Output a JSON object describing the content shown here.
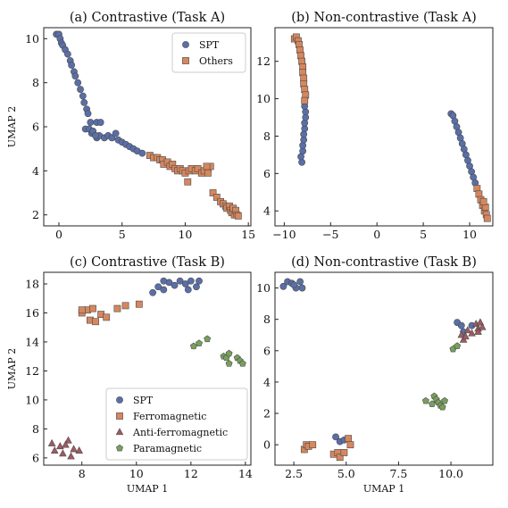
{
  "colors": {
    "SPT": "#5a6fa8",
    "Others": "#d6875e",
    "Ferromagnetic": "#d6875e",
    "Anti-ferromagnetic": "#a05a62",
    "Paramagnetic": "#78a05c"
  },
  "chart_data": [
    {
      "type": "scatter",
      "title": "(a) Contrastive (Task A)",
      "xlabel": "",
      "ylabel": "UMAP 2",
      "xlim": [
        -1.2,
        15.2
      ],
      "ylim": [
        1.5,
        10.5
      ],
      "xticks": [
        0,
        5,
        10,
        15
      ],
      "yticks": [
        2,
        4,
        6,
        8,
        10
      ],
      "legend": {
        "placement": "top-right",
        "entries": [
          "SPT",
          "Others"
        ]
      },
      "series": [
        {
          "name": "SPT",
          "marker": "circle",
          "points": [
            [
              -0.2,
              10.2
            ],
            [
              0.0,
              10.2
            ],
            [
              0.1,
              10.0
            ],
            [
              0.2,
              9.8
            ],
            [
              0.3,
              9.7
            ],
            [
              0.5,
              9.5
            ],
            [
              0.7,
              9.3
            ],
            [
              0.9,
              9.0
            ],
            [
              1.0,
              8.8
            ],
            [
              1.2,
              8.5
            ],
            [
              1.3,
              8.3
            ],
            [
              1.5,
              8.0
            ],
            [
              1.7,
              7.7
            ],
            [
              1.9,
              7.4
            ],
            [
              2.0,
              7.1
            ],
            [
              2.2,
              6.8
            ],
            [
              2.3,
              6.6
            ],
            [
              2.5,
              6.2
            ],
            [
              2.1,
              5.9
            ],
            [
              2.4,
              5.9
            ],
            [
              2.6,
              5.7
            ],
            [
              3.0,
              5.5
            ],
            [
              3.2,
              5.6
            ],
            [
              3.6,
              5.5
            ],
            [
              3.9,
              5.6
            ],
            [
              4.2,
              5.5
            ],
            [
              4.5,
              5.7
            ],
            [
              4.7,
              5.4
            ],
            [
              5.0,
              5.3
            ],
            [
              5.3,
              5.2
            ],
            [
              5.6,
              5.1
            ],
            [
              5.9,
              5.0
            ],
            [
              6.2,
              4.9
            ],
            [
              6.6,
              4.8
            ],
            [
              3.0,
              6.2
            ],
            [
              3.3,
              6.2
            ],
            [
              2.7,
              5.8
            ],
            [
              2.9,
              5.6
            ]
          ]
        },
        {
          "name": "Others",
          "marker": "square",
          "points": [
            [
              7.2,
              4.7
            ],
            [
              7.5,
              4.6
            ],
            [
              7.8,
              4.6
            ],
            [
              8.0,
              4.5
            ],
            [
              8.2,
              4.5
            ],
            [
              8.3,
              4.3
            ],
            [
              8.6,
              4.4
            ],
            [
              8.8,
              4.2
            ],
            [
              9.0,
              4.3
            ],
            [
              9.2,
              4.1
            ],
            [
              9.4,
              4.0
            ],
            [
              9.6,
              4.1
            ],
            [
              9.8,
              4.0
            ],
            [
              10.0,
              3.9
            ],
            [
              10.3,
              4.0
            ],
            [
              10.5,
              4.1
            ],
            [
              10.8,
              4.0
            ],
            [
              11.0,
              4.1
            ],
            [
              11.3,
              3.9
            ],
            [
              11.5,
              4.0
            ],
            [
              11.8,
              4.1
            ],
            [
              12.0,
              4.2
            ],
            [
              11.8,
              3.9
            ],
            [
              10.2,
              3.5
            ],
            [
              12.2,
              3.0
            ],
            [
              12.5,
              2.8
            ],
            [
              12.8,
              2.6
            ],
            [
              13.0,
              2.5
            ],
            [
              13.2,
              2.4
            ],
            [
              13.3,
              2.3
            ],
            [
              13.5,
              2.4
            ],
            [
              13.6,
              2.2
            ],
            [
              13.7,
              2.1
            ],
            [
              13.8,
              2.3
            ],
            [
              13.9,
              2.0
            ],
            [
              14.0,
              2.2
            ],
            [
              14.1,
              2.0
            ],
            [
              14.2,
              1.95
            ],
            [
              11.7,
              4.2
            ]
          ]
        }
      ]
    },
    {
      "type": "scatter",
      "title": "(b) Non-contrastive (Task A)",
      "xlabel": "",
      "ylabel": "",
      "xlim": [
        -11,
        12.5
      ],
      "ylim": [
        3.2,
        13.8
      ],
      "xticks": [
        -10,
        -5,
        0,
        5,
        10
      ],
      "yticks": [
        4,
        6,
        8,
        10,
        12
      ],
      "series": [
        {
          "name": "SPT",
          "marker": "circle",
          "points": [
            [
              -8.1,
              6.6
            ],
            [
              -8.2,
              6.9
            ],
            [
              -8.0,
              7.2
            ],
            [
              -8.0,
              7.5
            ],
            [
              -7.9,
              7.8
            ],
            [
              -7.9,
              8.1
            ],
            [
              -7.8,
              8.4
            ],
            [
              -7.8,
              8.7
            ],
            [
              -7.7,
              9.0
            ],
            [
              -7.7,
              9.3
            ],
            [
              -7.8,
              9.6
            ],
            [
              8.0,
              9.2
            ],
            [
              8.2,
              9.1
            ],
            [
              8.4,
              8.8
            ],
            [
              8.6,
              8.5
            ],
            [
              8.8,
              8.2
            ],
            [
              9.0,
              7.9
            ],
            [
              9.2,
              7.6
            ],
            [
              9.4,
              7.3
            ],
            [
              9.6,
              7.0
            ],
            [
              9.8,
              6.7
            ],
            [
              10.0,
              6.4
            ],
            [
              10.2,
              6.1
            ],
            [
              10.4,
              5.8
            ],
            [
              10.6,
              5.5
            ]
          ]
        },
        {
          "name": "Others",
          "marker": "square",
          "points": [
            [
              -8.9,
              13.2
            ],
            [
              -8.7,
              13.3
            ],
            [
              -8.5,
              13.1
            ],
            [
              -8.4,
              12.9
            ],
            [
              -8.3,
              12.6
            ],
            [
              -8.2,
              12.3
            ],
            [
              -8.1,
              12.0
            ],
            [
              -8.0,
              11.7
            ],
            [
              -8.0,
              11.4
            ],
            [
              -7.9,
              11.1
            ],
            [
              -7.9,
              10.8
            ],
            [
              -7.8,
              10.5
            ],
            [
              -7.7,
              10.2
            ],
            [
              -7.8,
              9.9
            ],
            [
              10.8,
              5.2
            ],
            [
              11.0,
              4.9
            ],
            [
              11.2,
              4.6
            ],
            [
              11.4,
              4.3
            ],
            [
              11.6,
              4.0
            ],
            [
              11.8,
              3.8
            ],
            [
              11.9,
              3.6
            ],
            [
              11.7,
              4.2
            ],
            [
              11.5,
              4.5
            ]
          ]
        }
      ]
    },
    {
      "type": "scatter",
      "title": "(c) Contrastive (Task B)",
      "xlabel": "UMAP 1",
      "ylabel": "UMAP 2",
      "xlim": [
        6.6,
        14.2
      ],
      "ylim": [
        5.5,
        18.8
      ],
      "xticks": [
        8,
        10,
        12,
        14
      ],
      "yticks": [
        6,
        8,
        10,
        12,
        14,
        16,
        18
      ],
      "legend": {
        "placement": "bottom-left",
        "entries": [
          "SPT",
          "Ferromagnetic",
          "Anti-ferromagnetic",
          "Paramagnetic"
        ]
      },
      "series": [
        {
          "name": "SPT",
          "marker": "circle",
          "points": [
            [
              10.6,
              17.4
            ],
            [
              10.8,
              17.8
            ],
            [
              11.0,
              17.6
            ],
            [
              11.2,
              18.1
            ],
            [
              11.0,
              18.2
            ],
            [
              11.4,
              17.9
            ],
            [
              11.6,
              18.2
            ],
            [
              11.8,
              18.0
            ],
            [
              12.0,
              18.2
            ],
            [
              12.2,
              17.8
            ],
            [
              12.3,
              18.2
            ],
            [
              11.9,
              17.6
            ]
          ]
        },
        {
          "name": "Ferromagnetic",
          "marker": "square",
          "points": [
            [
              8.0,
              16.0
            ],
            [
              8.2,
              16.2
            ],
            [
              8.4,
              16.3
            ],
            [
              8.3,
              15.5
            ],
            [
              8.5,
              15.4
            ],
            [
              8.7,
              15.9
            ],
            [
              8.9,
              15.7
            ],
            [
              9.3,
              16.3
            ],
            [
              9.6,
              16.5
            ],
            [
              10.1,
              16.6
            ],
            [
              8.0,
              16.2
            ]
          ]
        },
        {
          "name": "Anti-ferromagnetic",
          "marker": "triangle",
          "points": [
            [
              6.9,
              7.0
            ],
            [
              7.0,
              6.5
            ],
            [
              7.2,
              6.8
            ],
            [
              7.3,
              6.3
            ],
            [
              7.5,
              7.2
            ],
            [
              7.4,
              6.9
            ],
            [
              7.6,
              6.1
            ],
            [
              7.7,
              6.6
            ],
            [
              7.9,
              6.5
            ]
          ]
        },
        {
          "name": "Paramagnetic",
          "marker": "pentagon",
          "points": [
            [
              12.1,
              13.7
            ],
            [
              12.3,
              13.9
            ],
            [
              12.6,
              14.2
            ],
            [
              13.2,
              13.0
            ],
            [
              13.3,
              12.9
            ],
            [
              13.4,
              12.5
            ],
            [
              13.7,
              12.9
            ],
            [
              13.8,
              12.7
            ],
            [
              13.9,
              12.5
            ],
            [
              13.4,
              13.2
            ]
          ]
        }
      ]
    },
    {
      "type": "scatter",
      "title": "(d) Non-contrastive (Task B)",
      "xlabel": "UMAP 1",
      "ylabel": "",
      "xlim": [
        1.6,
        12.0
      ],
      "ylim": [
        -1.3,
        11.0
      ],
      "xticks": [
        2.5,
        5.0,
        7.5,
        10.0
      ],
      "xtick_labels": [
        "2.5",
        "5.0",
        "7.5",
        "10.0"
      ],
      "yticks": [
        0,
        2,
        4,
        6,
        8,
        10
      ],
      "series": [
        {
          "name": "SPT",
          "marker": "circle",
          "points": [
            [
              2.0,
              10.1
            ],
            [
              2.2,
              10.4
            ],
            [
              2.4,
              10.3
            ],
            [
              2.6,
              10.0
            ],
            [
              2.8,
              10.4
            ],
            [
              2.9,
              10.0
            ],
            [
              2.5,
              10.2
            ],
            [
              4.5,
              0.5
            ],
            [
              4.7,
              0.2
            ],
            [
              4.9,
              0.3
            ],
            [
              10.3,
              7.8
            ],
            [
              10.5,
              7.6
            ],
            [
              10.6,
              7.2
            ],
            [
              11.0,
              7.6
            ]
          ]
        },
        {
          "name": "Ferromagnetic",
          "marker": "square",
          "points": [
            [
              3.0,
              -0.3
            ],
            [
              3.1,
              0.0
            ],
            [
              3.2,
              -0.1
            ],
            [
              3.4,
              0.0
            ],
            [
              4.4,
              -0.6
            ],
            [
              4.6,
              -0.5
            ],
            [
              4.7,
              -0.8
            ],
            [
              4.9,
              -0.5
            ],
            [
              5.1,
              0.4
            ],
            [
              5.2,
              0.0
            ]
          ]
        },
        {
          "name": "Anti-ferromagnetic",
          "marker": "triangle",
          "points": [
            [
              10.5,
              7.0
            ],
            [
              10.6,
              6.7
            ],
            [
              10.8,
              7.3
            ],
            [
              11.0,
              7.1
            ],
            [
              11.2,
              7.7
            ],
            [
              11.3,
              7.4
            ],
            [
              11.4,
              7.8
            ],
            [
              11.5,
              7.5
            ],
            [
              11.3,
              7.2
            ],
            [
              10.7,
              6.9
            ]
          ]
        },
        {
          "name": "Paramagnetic",
          "marker": "pentagon",
          "points": [
            [
              8.8,
              2.8
            ],
            [
              9.1,
              2.6
            ],
            [
              9.2,
              3.1
            ],
            [
              9.3,
              2.9
            ],
            [
              9.4,
              2.7
            ],
            [
              9.5,
              2.5
            ],
            [
              9.6,
              2.4
            ],
            [
              9.7,
              2.8
            ],
            [
              10.1,
              6.1
            ],
            [
              10.3,
              6.3
            ]
          ]
        }
      ]
    }
  ]
}
